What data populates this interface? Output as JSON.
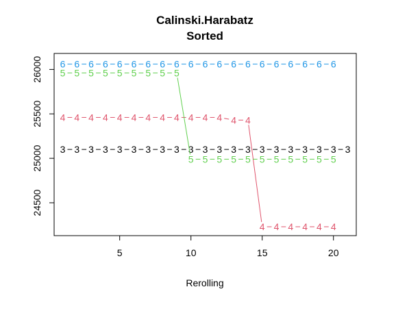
{
  "chart_data": {
    "type": "line",
    "title": "Calinski.Harabatz",
    "subtitle": "Sorted",
    "xlabel": "Rerolling",
    "ylabel": "",
    "xlim": [
      0.4,
      21.6
    ],
    "ylim": [
      24130,
      26180
    ],
    "x_ticks": [
      5,
      10,
      15,
      20
    ],
    "y_ticks": [
      24500,
      25000,
      25500,
      26000
    ],
    "grid": false,
    "legend": "none",
    "series": [
      {
        "label": "3",
        "color": "#000000",
        "x": [
          1,
          2,
          3,
          4,
          5,
          6,
          7,
          8,
          9,
          10,
          11,
          12,
          13,
          14,
          15,
          16,
          17,
          18,
          19,
          20,
          21
        ],
        "y": [
          25100,
          25100,
          25100,
          25100,
          25100,
          25100,
          25100,
          25100,
          25100,
          25100,
          25100,
          25100,
          25100,
          25100,
          25100,
          25100,
          25100,
          25100,
          25100,
          25100,
          25100
        ]
      },
      {
        "label": "4",
        "color": "#DF536B",
        "x": [
          1,
          2,
          3,
          4,
          5,
          6,
          7,
          8,
          9,
          10,
          11,
          12,
          13,
          14,
          15,
          16,
          17,
          18,
          19,
          20
        ],
        "y": [
          25460,
          25460,
          25460,
          25460,
          25460,
          25460,
          25460,
          25460,
          25460,
          25460,
          25460,
          25460,
          25430,
          25430,
          24230,
          24230,
          24230,
          24230,
          24230,
          24230
        ]
      },
      {
        "label": "5",
        "color": "#61D04F",
        "x": [
          1,
          2,
          3,
          4,
          5,
          6,
          7,
          8,
          9,
          10,
          11,
          12,
          13,
          14,
          15,
          16,
          17,
          18,
          19,
          20
        ],
        "y": [
          25960,
          25960,
          25960,
          25960,
          25960,
          25960,
          25960,
          25960,
          25960,
          24990,
          24990,
          24990,
          24990,
          24990,
          24990,
          24990,
          24990,
          24990,
          24990,
          24990
        ]
      },
      {
        "label": "6",
        "color": "#2297E6",
        "x": [
          1,
          2,
          3,
          4,
          5,
          6,
          7,
          8,
          9,
          10,
          11,
          12,
          13,
          14,
          15,
          16,
          17,
          18,
          19,
          20
        ],
        "y": [
          26060,
          26060,
          26060,
          26060,
          26060,
          26060,
          26060,
          26060,
          26060,
          26060,
          26060,
          26060,
          26060,
          26060,
          26060,
          26060,
          26060,
          26060,
          26060,
          26060
        ]
      }
    ]
  }
}
